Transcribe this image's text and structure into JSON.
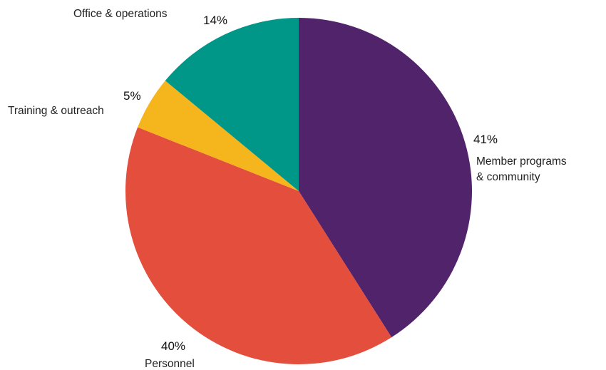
{
  "chart_data": {
    "type": "pie",
    "title": "",
    "start": "12 o'clock",
    "direction": "clockwise",
    "slices": [
      {
        "label_lines": [
          "Member programs",
          "& community"
        ],
        "value": 41,
        "value_label": "41%",
        "color": "#51236b"
      },
      {
        "label_lines": [
          "Personnel"
        ],
        "value": 40,
        "value_label": "40%",
        "color": "#e44e3d"
      },
      {
        "label_lines": [
          "Training & outreach"
        ],
        "value": 5,
        "value_label": "5%",
        "color": "#f5b51c"
      },
      {
        "label_lines": [
          "Office & operations"
        ],
        "value": 14,
        "value_label": "14%",
        "color": "#009688"
      }
    ]
  }
}
